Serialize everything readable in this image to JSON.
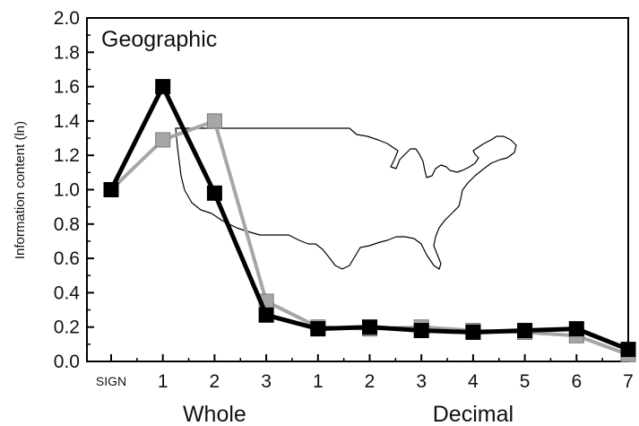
{
  "chart_data": {
    "type": "line",
    "title": "Geographic",
    "ylabel": "Information content (ln)",
    "ylim": [
      0,
      2.0
    ],
    "yticks": [
      "0.0",
      "0.2",
      "0.4",
      "0.6",
      "0.8",
      "1.0",
      "1.2",
      "1.4",
      "1.6",
      "1.8",
      "2.0"
    ],
    "categories": [
      "SIGN",
      "1",
      "2",
      "3",
      "1",
      "2",
      "3",
      "4",
      "5",
      "6",
      "7"
    ],
    "groups": [
      {
        "label": "Whole",
        "from": 1,
        "to": 3
      },
      {
        "label": "Decimal",
        "from": 4,
        "to": 10
      }
    ],
    "series": [
      {
        "color": "#a6a6a6",
        "values": [
          1.0,
          1.29,
          1.4,
          0.35,
          0.2,
          0.19,
          0.2,
          0.18,
          0.17,
          0.15,
          0.04
        ]
      },
      {
        "color": "#000000",
        "values": [
          1.0,
          1.6,
          0.98,
          0.27,
          0.19,
          0.2,
          0.18,
          0.17,
          0.18,
          0.19,
          0.07
        ]
      }
    ],
    "background_image": "united-states-map-outline",
    "grid": false
  }
}
